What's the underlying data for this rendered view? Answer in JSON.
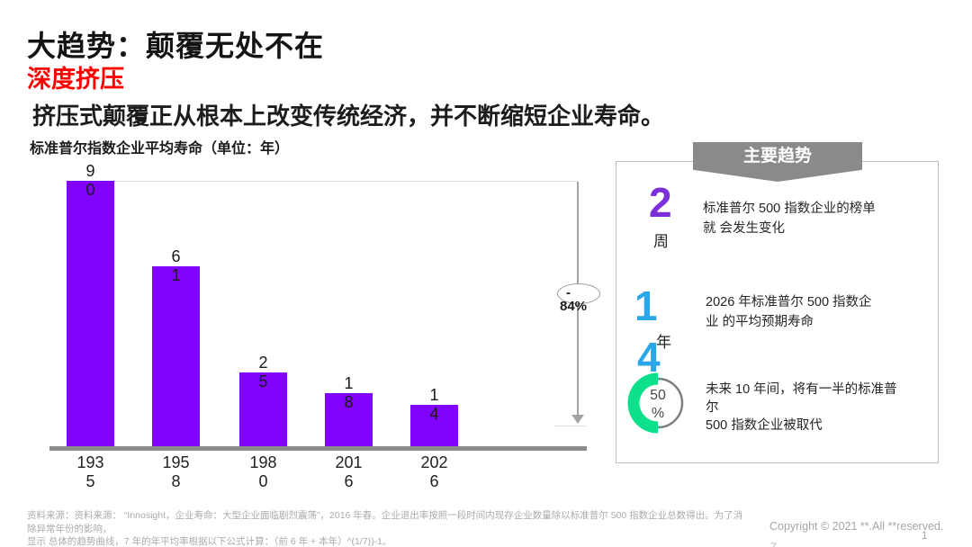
{
  "slide": {
    "title": "大趋势：颠覆无处不在",
    "subtitle": "深度挤压",
    "headline": "挤压式颠覆正从根本上改变传统经济，并不断缩短企业寿命。",
    "chart_caption": "标准普尔指数企业平均寿命（单位：年）"
  },
  "chart_data": {
    "type": "bar",
    "title": "标准普尔指数企业平均寿命（单位：年）",
    "categories": [
      "1935",
      "1958",
      "1980",
      "2016",
      "2026"
    ],
    "values": [
      90,
      61,
      25,
      18,
      14
    ],
    "xlabel": "",
    "ylabel": "年",
    "ylim": [
      0,
      92
    ],
    "grid": false,
    "legend": "none",
    "bar_color": "#8103FE",
    "annotation": {
      "line1": "-",
      "line2": "84%",
      "meaning": "decline from 90 to 14 years"
    },
    "value_labels_wrapped": [
      [
        "9",
        "0"
      ],
      [
        "6",
        "1"
      ],
      [
        "2",
        "5"
      ],
      [
        "1",
        "8"
      ],
      [
        "1",
        "4"
      ]
    ],
    "category_labels_wrapped": [
      [
        "193",
        "5"
      ],
      [
        "195",
        "8"
      ],
      [
        "198",
        "0"
      ],
      [
        "201",
        "6"
      ],
      [
        "202",
        "6"
      ]
    ]
  },
  "panel": {
    "header": "主要趋势",
    "accent_purple": "#7B2FD8",
    "accent_blue": "#2BA6E6",
    "accent_green": "#0CE08A",
    "items": [
      {
        "stat": "2",
        "unit": "周",
        "line1": "标准普尔 500 指数企业的榜单",
        "line2": "就 会发生变化"
      },
      {
        "stat_top": "1",
        "unit": "年",
        "stat_bottom": "4",
        "line1": "2026 年标准普尔 500 指数企",
        "line2": "业 的平均预期寿命"
      },
      {
        "donut_value": "50",
        "donut_unit": "%",
        "donut_percent": 50,
        "line1": "未来 10 年间，将有一半的标准普",
        "line2": "尔",
        "line3": "500 指数企业被取代"
      }
    ]
  },
  "footer": {
    "source_line1": "资料来源：资料来源： “Innosight，企业寿命：大型企业面临剧烈震荡”，2016 年春。企业退出率按照一段时间内现存企业数量除以标准普尔 500 指数企业总数得出。为了消除异常年份的影响，",
    "source_line2": "显示 总体的趋势曲线，7 年的年平均率根据以下公式计算：（前 6 年 + 本年）^(1/7))-1。",
    "copyright": "Copyright © 2021 **.All **reserved.",
    "page_number": "1",
    "partial_glyph": "7"
  }
}
